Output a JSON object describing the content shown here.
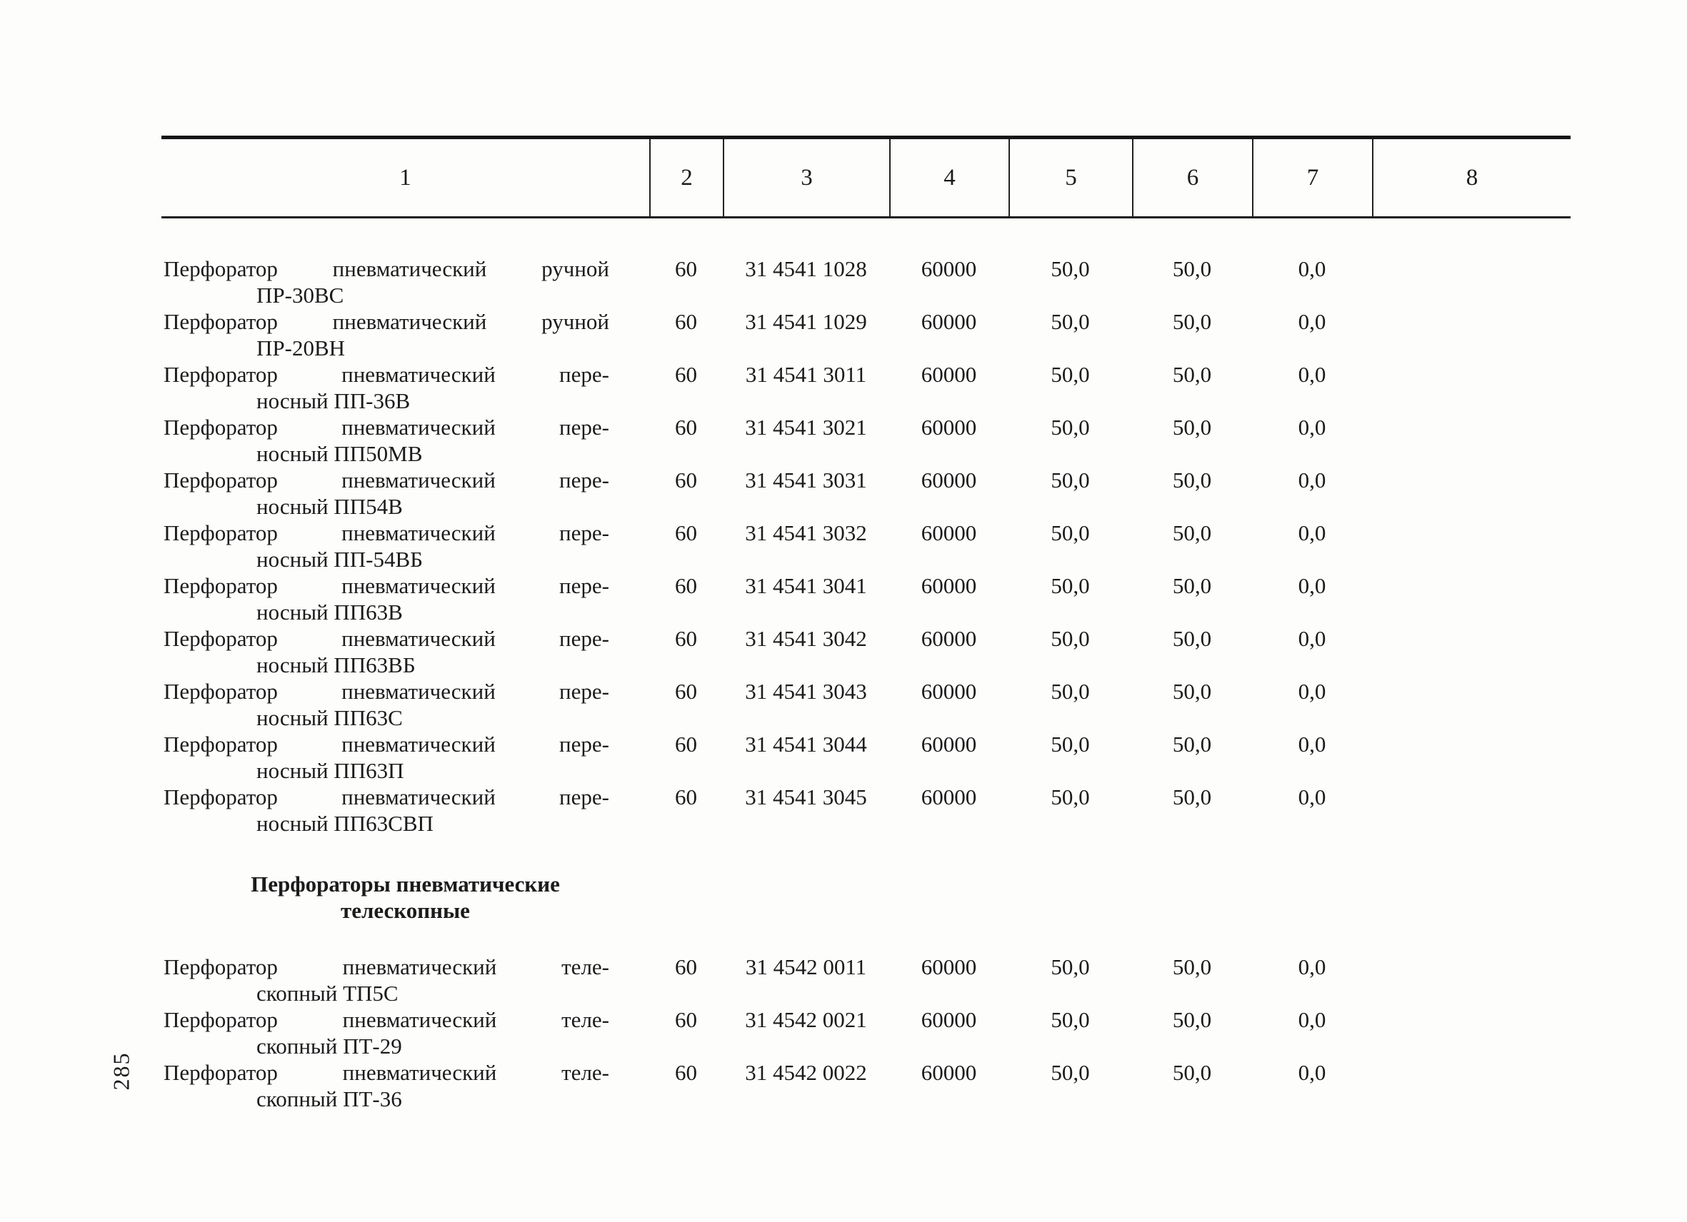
{
  "page": {
    "number": "285"
  },
  "table": {
    "column_headers": [
      "1",
      "2",
      "3",
      "4",
      "5",
      "6",
      "7",
      "8"
    ],
    "sections": [
      {
        "rows": [
          {
            "name_line1": "Перфоратор пневматический ручной",
            "name_line2": "ПР-30ВС",
            "c2": "60",
            "c3": "31 4541 1028",
            "c4": "60000",
            "c5": "50,0",
            "c6": "50,0",
            "c7": "0,0",
            "c8": ""
          },
          {
            "name_line1": "Перфоратор пневматический ручной",
            "name_line2": "ПР-20ВН",
            "c2": "60",
            "c3": "31 4541 1029",
            "c4": "60000",
            "c5": "50,0",
            "c6": "50,0",
            "c7": "0,0",
            "c8": ""
          },
          {
            "name_line1": "Перфоратор пневматический пере-",
            "name_line2": "носный ПП-36В",
            "c2": "60",
            "c3": "31 4541 3011",
            "c4": "60000",
            "c5": "50,0",
            "c6": "50,0",
            "c7": "0,0",
            "c8": ""
          },
          {
            "name_line1": "Перфоратор пневматический пере-",
            "name_line2": "носный ПП50МВ",
            "c2": "60",
            "c3": "31 4541 3021",
            "c4": "60000",
            "c5": "50,0",
            "c6": "50,0",
            "c7": "0,0",
            "c8": ""
          },
          {
            "name_line1": "Перфоратор пневматический пере-",
            "name_line2": "носный ПП54В",
            "c2": "60",
            "c3": "31 4541 3031",
            "c4": "60000",
            "c5": "50,0",
            "c6": "50,0",
            "c7": "0,0",
            "c8": ""
          },
          {
            "name_line1": "Перфоратор пневматический пере-",
            "name_line2": "носный ПП-54ВБ",
            "c2": "60",
            "c3": "31 4541 3032",
            "c4": "60000",
            "c5": "50,0",
            "c6": "50,0",
            "c7": "0,0",
            "c8": ""
          },
          {
            "name_line1": "Перфоратор пневматический пере-",
            "name_line2": "носный ПП63В",
            "c2": "60",
            "c3": "31 4541 3041",
            "c4": "60000",
            "c5": "50,0",
            "c6": "50,0",
            "c7": "0,0",
            "c8": ""
          },
          {
            "name_line1": "Перфоратор пневматический пере-",
            "name_line2": "носный ПП63ВБ",
            "c2": "60",
            "c3": "31 4541 3042",
            "c4": "60000",
            "c5": "50,0",
            "c6": "50,0",
            "c7": "0,0",
            "c8": ""
          },
          {
            "name_line1": "Перфоратор пневматический пере-",
            "name_line2": "носный ПП63С",
            "c2": "60",
            "c3": "31 4541 3043",
            "c4": "60000",
            "c5": "50,0",
            "c6": "50,0",
            "c7": "0,0",
            "c8": ""
          },
          {
            "name_line1": "Перфоратор пневматический пере-",
            "name_line2": "носный ПП63П",
            "c2": "60",
            "c3": "31 4541 3044",
            "c4": "60000",
            "c5": "50,0",
            "c6": "50,0",
            "c7": "0,0",
            "c8": ""
          },
          {
            "name_line1": "Перфоратор пневматический пере-",
            "name_line2": "носный ПП63СВП",
            "c2": "60",
            "c3": "31 4541 3045",
            "c4": "60000",
            "c5": "50,0",
            "c6": "50,0",
            "c7": "0,0",
            "c8": ""
          }
        ]
      },
      {
        "heading_line1": "Перфораторы пневматические",
        "heading_line2": "телескопные",
        "rows": [
          {
            "name_line1": "Перфоратор пневматический теле-",
            "name_line2": "скопный ТП5С",
            "c2": "60",
            "c3": "31 4542 0011",
            "c4": "60000",
            "c5": "50,0",
            "c6": "50,0",
            "c7": "0,0",
            "c8": ""
          },
          {
            "name_line1": "Перфоратор пневматический теле-",
            "name_line2": "скопный ПТ-29",
            "c2": "60",
            "c3": "31 4542 0021",
            "c4": "60000",
            "c5": "50,0",
            "c6": "50,0",
            "c7": "0,0",
            "c8": ""
          },
          {
            "name_line1": "Перфоратор пневматический теле-",
            "name_line2": "скопный ПТ-36",
            "c2": "60",
            "c3": "31 4542 0022",
            "c4": "60000",
            "c5": "50,0",
            "c6": "50,0",
            "c7": "0,0",
            "c8": ""
          }
        ]
      }
    ]
  }
}
